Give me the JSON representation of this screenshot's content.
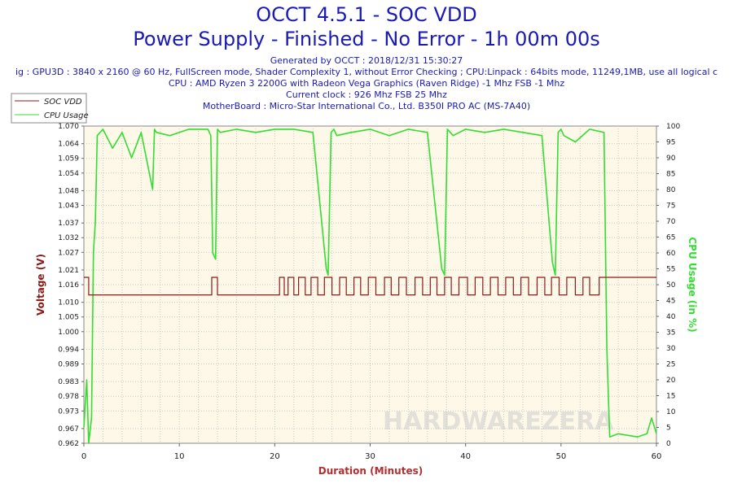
{
  "header": {
    "title": "OCCT 4.5.1 - SOC VDD",
    "subtitle": "Power Supply - Finished - No Error - 1h 00m 00s",
    "info_lines": [
      "Generated by OCCT : 2018/12/31 15:30:27",
      "ig : GPU3D : 3840 x 2160 @ 60 Hz, FullScreen mode, Shader Complexity 1, without Error Checking ; CPU:Linpack : 64bits mode, 11249,1MB, use all logical c",
      "CPU : AMD Ryzen 3 2200G with Radeon Vega Graphics (Raven Ridge) -1 Mhz FSB -1 Mhz",
      "Current clock : 926 Mhz FSB 25 Mhz",
      "MotherBoard : Micro-Star International Co., Ltd. B350I PRO AC (MS-7A40)"
    ]
  },
  "watermark": "HARDWAREZERA",
  "colors": {
    "title": "#1a1ab4",
    "plot_bg": "#fdf8e7",
    "voltage": "#8b1a1a",
    "cpu": "#33dd33",
    "axis_label": "#b03030"
  },
  "chart_data": {
    "type": "line",
    "title": "OCCT 4.5.1 - SOC VDD",
    "xlabel": "Duration (Minutes)",
    "ylabel": "Voltage (V)",
    "y2label": "CPU Usage (in %)",
    "xlim": [
      0,
      60
    ],
    "ylim": [
      0.962,
      1.07
    ],
    "y2lim": [
      0,
      100
    ],
    "x_ticks": [
      0,
      10,
      20,
      30,
      40,
      50,
      60
    ],
    "y_ticks": [
      "0.962",
      "0.967",
      "0.973",
      "0.978",
      "0.983",
      "0.989",
      "0.994",
      "1.000",
      "1.005",
      "1.010",
      "1.016",
      "1.021",
      "1.027",
      "1.032",
      "1.037",
      "1.043",
      "1.048",
      "1.054",
      "1.059",
      "1.064",
      "1.070"
    ],
    "y2_ticks": [
      0,
      5,
      10,
      15,
      20,
      25,
      30,
      35,
      40,
      45,
      50,
      55,
      60,
      65,
      70,
      75,
      80,
      85,
      90,
      95,
      100
    ],
    "grid": true,
    "legend_position": "top-left",
    "series": [
      {
        "name": "SOC VDD",
        "axis": "left",
        "x": [
          0,
          0.5,
          0.5,
          2.8,
          2.8,
          13.4,
          13.4,
          14.0,
          14.0,
          20.5,
          20.5,
          21.0,
          21.0,
          21.4,
          21.4,
          22.0,
          22.0,
          22.5,
          22.5,
          23.2,
          23.2,
          23.8,
          23.8,
          24.5,
          24.5,
          25.2,
          25.2,
          26.0,
          26.0,
          26.8,
          26.8,
          27.5,
          27.5,
          28.3,
          28.3,
          29.0,
          29.0,
          29.8,
          29.8,
          30.6,
          30.6,
          31.5,
          31.5,
          32.2,
          32.2,
          33.0,
          33.0,
          33.8,
          33.8,
          34.7,
          34.7,
          35.5,
          35.5,
          36.3,
          36.3,
          37.0,
          37.0,
          37.8,
          37.8,
          38.5,
          38.5,
          39.3,
          39.3,
          40.2,
          40.2,
          41.0,
          41.0,
          41.8,
          41.8,
          42.6,
          42.6,
          43.4,
          43.4,
          44.2,
          44.2,
          45.0,
          45.0,
          45.8,
          45.8,
          46.6,
          46.6,
          47.5,
          47.5,
          48.3,
          48.3,
          49.0,
          49.0,
          49.8,
          49.8,
          50.6,
          50.6,
          51.5,
          51.5,
          52.3,
          52.3,
          53.0,
          53.0,
          54.0,
          54.0,
          60
        ],
        "values": [
          1.0185,
          1.0185,
          1.0125,
          1.0125,
          1.0125,
          1.0125,
          1.0185,
          1.0185,
          1.0125,
          1.0125,
          1.0185,
          1.0185,
          1.0125,
          1.0125,
          1.0185,
          1.0185,
          1.0125,
          1.0125,
          1.0185,
          1.0185,
          1.0125,
          1.0125,
          1.0185,
          1.0185,
          1.0125,
          1.0125,
          1.0185,
          1.0185,
          1.0125,
          1.0125,
          1.0185,
          1.0185,
          1.0125,
          1.0125,
          1.0185,
          1.0185,
          1.0125,
          1.0125,
          1.0185,
          1.0185,
          1.0125,
          1.0125,
          1.0185,
          1.0185,
          1.0125,
          1.0125,
          1.0185,
          1.0185,
          1.0125,
          1.0125,
          1.0185,
          1.0185,
          1.0125,
          1.0125,
          1.0185,
          1.0185,
          1.0125,
          1.0125,
          1.0185,
          1.0185,
          1.0125,
          1.0125,
          1.0185,
          1.0185,
          1.0125,
          1.0125,
          1.0185,
          1.0185,
          1.0125,
          1.0125,
          1.0185,
          1.0185,
          1.0125,
          1.0125,
          1.0185,
          1.0185,
          1.0125,
          1.0125,
          1.0185,
          1.0185,
          1.0125,
          1.0125,
          1.0185,
          1.0185,
          1.0125,
          1.0125,
          1.0185,
          1.0185,
          1.0125,
          1.0125,
          1.0185,
          1.0185,
          1.0125,
          1.0125,
          1.0185,
          1.0185,
          1.0125,
          1.0125,
          1.0185,
          1.0185
        ]
      },
      {
        "name": "CPU Usage",
        "axis": "right",
        "x": [
          0,
          0.3,
          0.5,
          0.8,
          1.0,
          1.2,
          1.4,
          2.0,
          3.0,
          4.0,
          5.0,
          6.0,
          7.2,
          7.4,
          7.6,
          9.0,
          11.0,
          13.0,
          13.3,
          13.5,
          13.8,
          14.0,
          14.3,
          16.0,
          18.0,
          20.0,
          22.0,
          24.0,
          25.4,
          25.6,
          25.9,
          26.2,
          26.5,
          28.0,
          30.0,
          32.0,
          34.0,
          36.0,
          37.5,
          37.8,
          38.1,
          38.4,
          38.7,
          40.0,
          42.0,
          44.0,
          46.0,
          48.0,
          49.1,
          49.4,
          49.7,
          50.0,
          50.3,
          51.5,
          53.0,
          54.5,
          54.8,
          55.1,
          56.0,
          58.0,
          59.0,
          59.5,
          60.0
        ],
        "values": [
          5,
          20,
          0,
          8,
          60,
          70,
          97,
          99,
          93,
          98,
          90,
          98,
          80,
          99,
          98,
          97,
          99,
          99,
          97,
          60,
          58,
          99,
          98,
          99,
          98,
          99,
          99,
          98,
          55,
          53,
          98,
          99,
          97,
          98,
          99,
          97,
          99,
          98,
          55,
          53,
          99,
          98,
          97,
          99,
          98,
          99,
          98,
          97,
          57,
          53,
          98,
          99,
          97,
          95,
          99,
          98,
          30,
          2,
          3,
          2,
          3,
          8,
          3
        ]
      }
    ]
  }
}
